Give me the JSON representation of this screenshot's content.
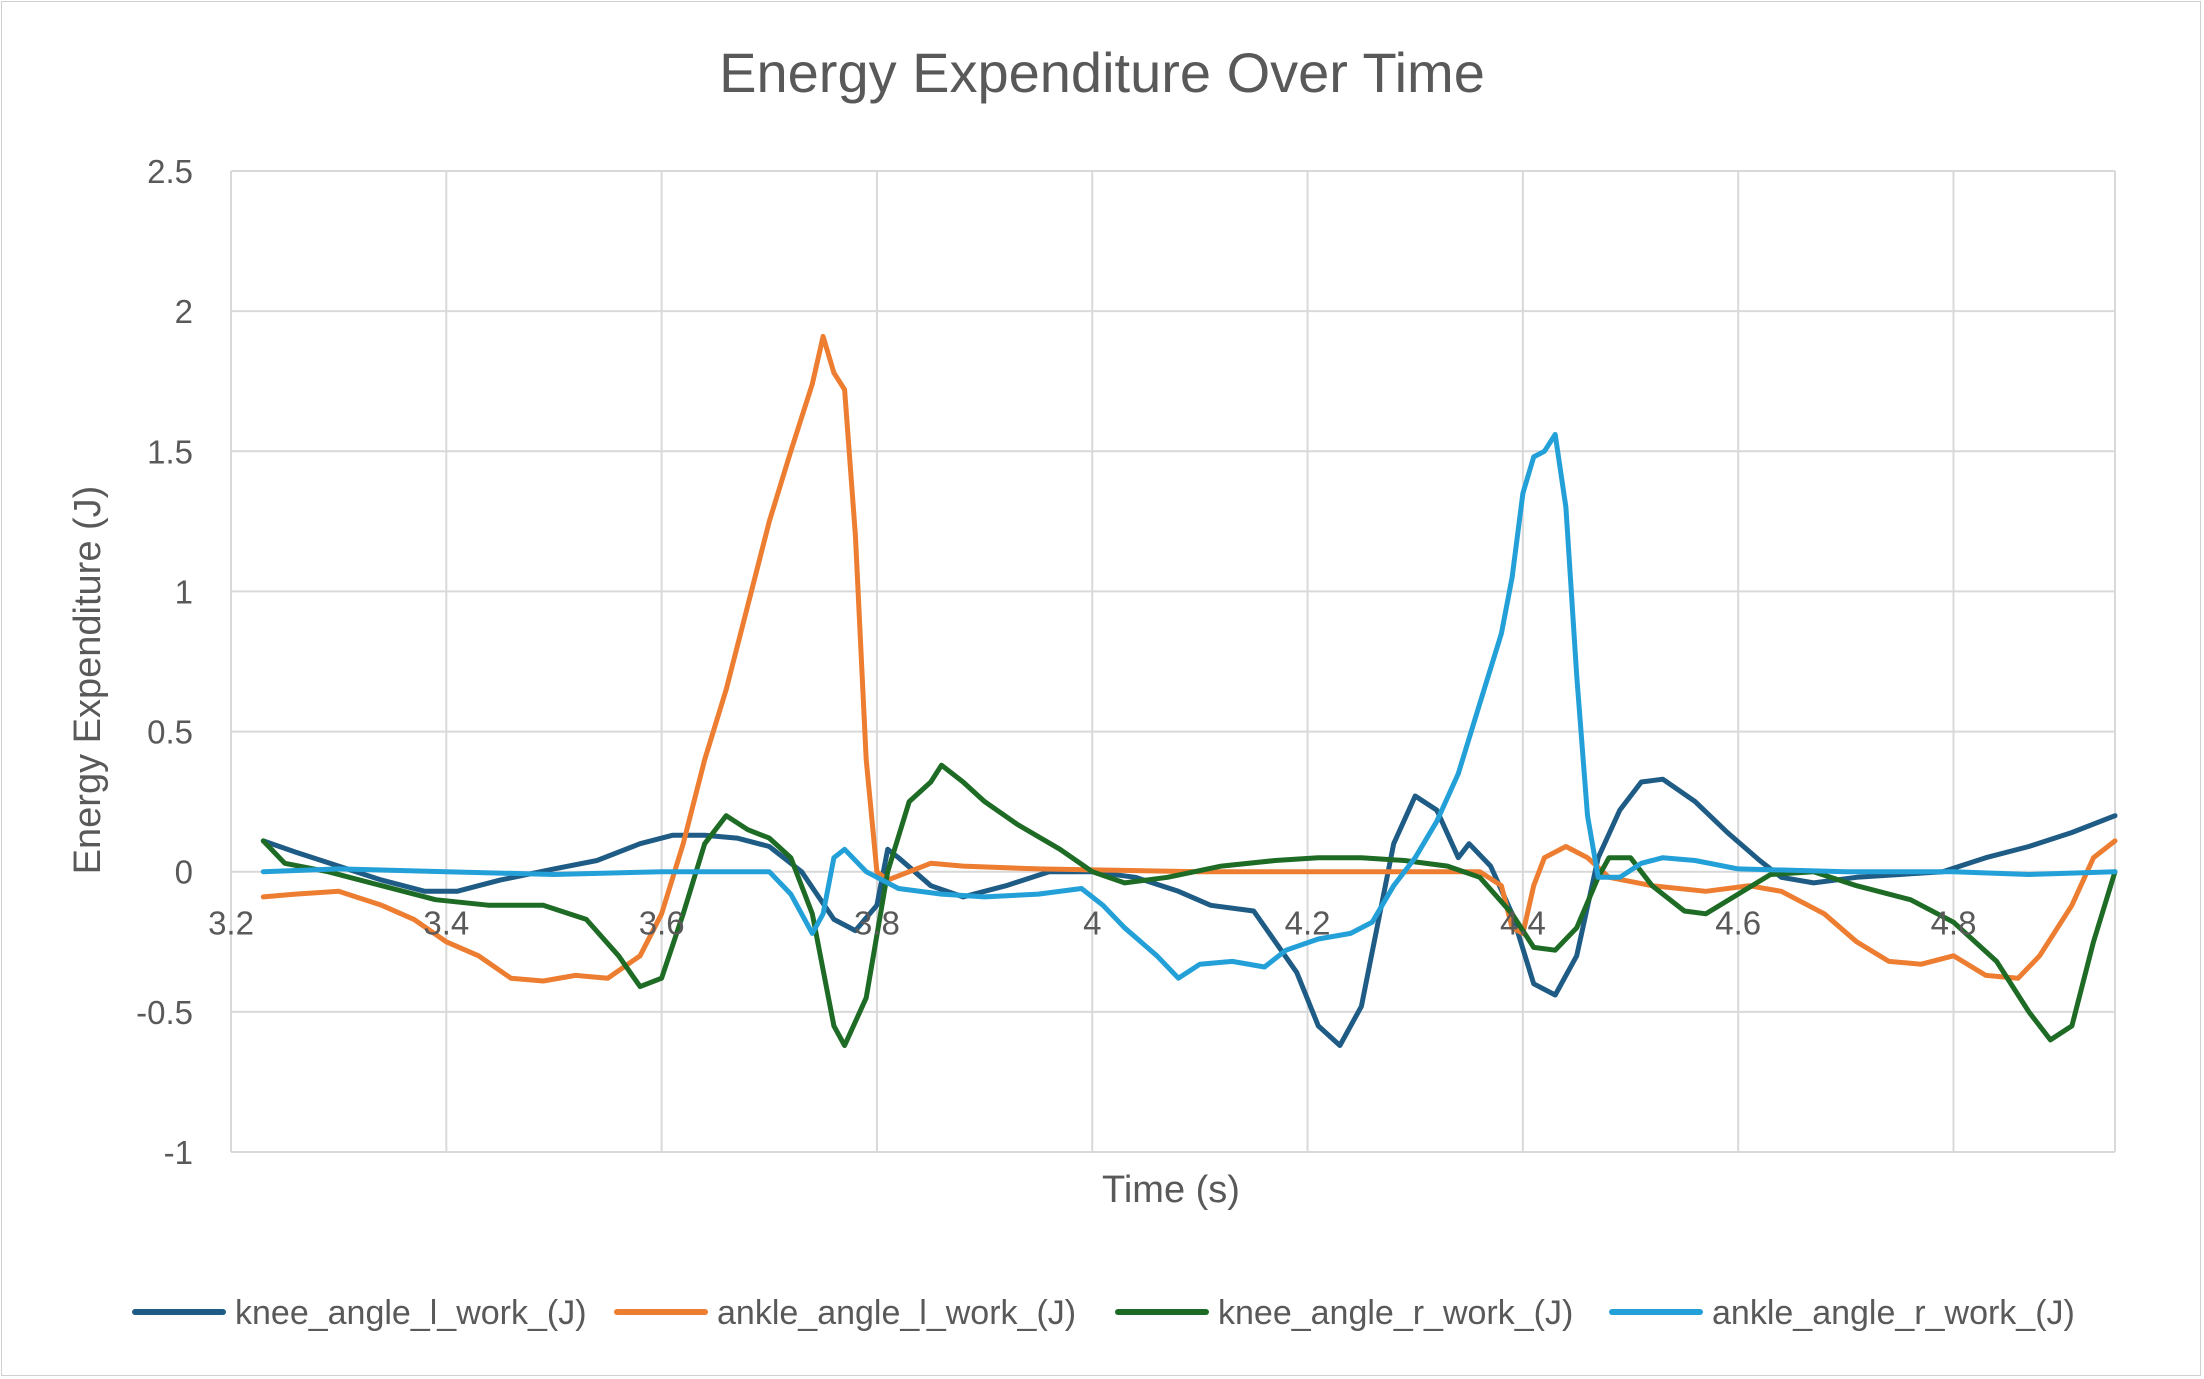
{
  "chart_data": {
    "type": "line",
    "title": "Energy Expenditure Over Time",
    "xlabel": "Time (s)",
    "ylabel": "Energy Expenditure (J)",
    "xlim": [
      3.2,
      4.95
    ],
    "ylim": [
      -1,
      2.5
    ],
    "x_ticks": [
      "3.2",
      "3.4",
      "3.6",
      "3.8",
      "4",
      "4.2",
      "4.4",
      "4.6",
      "4.8"
    ],
    "y_ticks": [
      "2.5",
      "2",
      "1.5",
      "1",
      "0.5",
      "0",
      "-0.5",
      "-1"
    ],
    "grid": "on",
    "legend_position": "bottom",
    "series": [
      {
        "name": "knee_angle_l_work_(J)",
        "color": "#1f5c85",
        "points": [
          [
            3.23,
            0.11
          ],
          [
            3.26,
            0.07
          ],
          [
            3.3,
            0.02
          ],
          [
            3.34,
            -0.03
          ],
          [
            3.38,
            -0.07
          ],
          [
            3.41,
            -0.07
          ],
          [
            3.45,
            -0.03
          ],
          [
            3.5,
            0.01
          ],
          [
            3.54,
            0.04
          ],
          [
            3.58,
            0.1
          ],
          [
            3.61,
            0.13
          ],
          [
            3.64,
            0.13
          ],
          [
            3.67,
            0.12
          ],
          [
            3.7,
            0.09
          ],
          [
            3.73,
            0.0
          ],
          [
            3.76,
            -0.17
          ],
          [
            3.78,
            -0.21
          ],
          [
            3.8,
            -0.12
          ],
          [
            3.81,
            0.08
          ],
          [
            3.82,
            0.05
          ],
          [
            3.85,
            -0.05
          ],
          [
            3.88,
            -0.09
          ],
          [
            3.92,
            -0.05
          ],
          [
            3.96,
            0.0
          ],
          [
            4.0,
            0.0
          ],
          [
            4.04,
            -0.02
          ],
          [
            4.08,
            -0.07
          ],
          [
            4.11,
            -0.12
          ],
          [
            4.15,
            -0.14
          ],
          [
            4.19,
            -0.36
          ],
          [
            4.21,
            -0.55
          ],
          [
            4.23,
            -0.62
          ],
          [
            4.25,
            -0.48
          ],
          [
            4.28,
            0.1
          ],
          [
            4.3,
            0.27
          ],
          [
            4.32,
            0.22
          ],
          [
            4.34,
            0.05
          ],
          [
            4.35,
            0.1
          ],
          [
            4.37,
            0.02
          ],
          [
            4.39,
            -0.15
          ],
          [
            4.41,
            -0.4
          ],
          [
            4.43,
            -0.44
          ],
          [
            4.45,
            -0.3
          ],
          [
            4.47,
            0.05
          ],
          [
            4.49,
            0.22
          ],
          [
            4.51,
            0.32
          ],
          [
            4.53,
            0.33
          ],
          [
            4.56,
            0.25
          ],
          [
            4.59,
            0.14
          ],
          [
            4.62,
            0.04
          ],
          [
            4.64,
            -0.02
          ],
          [
            4.67,
            -0.04
          ],
          [
            4.71,
            -0.02
          ],
          [
            4.75,
            -0.01
          ],
          [
            4.79,
            0.0
          ],
          [
            4.83,
            0.05
          ],
          [
            4.87,
            0.09
          ],
          [
            4.91,
            0.14
          ],
          [
            4.95,
            0.2
          ]
        ]
      },
      {
        "name": "ankle_angle_l_work_(J)",
        "color": "#ed7d31",
        "points": [
          [
            3.23,
            -0.09
          ],
          [
            3.26,
            -0.08
          ],
          [
            3.3,
            -0.07
          ],
          [
            3.34,
            -0.12
          ],
          [
            3.37,
            -0.17
          ],
          [
            3.4,
            -0.25
          ],
          [
            3.43,
            -0.3
          ],
          [
            3.46,
            -0.38
          ],
          [
            3.49,
            -0.39
          ],
          [
            3.52,
            -0.37
          ],
          [
            3.55,
            -0.38
          ],
          [
            3.58,
            -0.3
          ],
          [
            3.6,
            -0.15
          ],
          [
            3.62,
            0.1
          ],
          [
            3.64,
            0.4
          ],
          [
            3.66,
            0.65
          ],
          [
            3.68,
            0.95
          ],
          [
            3.7,
            1.25
          ],
          [
            3.72,
            1.5
          ],
          [
            3.74,
            1.74
          ],
          [
            3.75,
            1.91
          ],
          [
            3.76,
            1.78
          ],
          [
            3.77,
            1.72
          ],
          [
            3.78,
            1.2
          ],
          [
            3.79,
            0.4
          ],
          [
            3.8,
            0.0
          ],
          [
            3.81,
            -0.03
          ],
          [
            3.83,
            0.0
          ],
          [
            3.85,
            0.03
          ],
          [
            3.88,
            0.02
          ],
          [
            3.95,
            0.01
          ],
          [
            4.1,
            0.0
          ],
          [
            4.3,
            0.0
          ],
          [
            4.36,
            0.0
          ],
          [
            4.38,
            -0.05
          ],
          [
            4.39,
            -0.2
          ],
          [
            4.4,
            -0.22
          ],
          [
            4.41,
            -0.05
          ],
          [
            4.42,
            0.05
          ],
          [
            4.44,
            0.09
          ],
          [
            4.46,
            0.05
          ],
          [
            4.48,
            -0.02
          ],
          [
            4.52,
            -0.05
          ],
          [
            4.57,
            -0.07
          ],
          [
            4.61,
            -0.05
          ],
          [
            4.64,
            -0.07
          ],
          [
            4.68,
            -0.15
          ],
          [
            4.71,
            -0.25
          ],
          [
            4.74,
            -0.32
          ],
          [
            4.77,
            -0.33
          ],
          [
            4.8,
            -0.3
          ],
          [
            4.83,
            -0.37
          ],
          [
            4.86,
            -0.38
          ],
          [
            4.88,
            -0.3
          ],
          [
            4.91,
            -0.12
          ],
          [
            4.93,
            0.05
          ],
          [
            4.95,
            0.11
          ]
        ]
      },
      {
        "name": "knee_angle_r_work_(J)",
        "color": "#1e6b25",
        "points": [
          [
            3.23,
            0.11
          ],
          [
            3.25,
            0.03
          ],
          [
            3.29,
            0.0
          ],
          [
            3.34,
            -0.05
          ],
          [
            3.39,
            -0.1
          ],
          [
            3.44,
            -0.12
          ],
          [
            3.49,
            -0.12
          ],
          [
            3.53,
            -0.17
          ],
          [
            3.56,
            -0.3
          ],
          [
            3.58,
            -0.41
          ],
          [
            3.6,
            -0.38
          ],
          [
            3.62,
            -0.15
          ],
          [
            3.64,
            0.1
          ],
          [
            3.66,
            0.2
          ],
          [
            3.68,
            0.15
          ],
          [
            3.7,
            0.12
          ],
          [
            3.72,
            0.05
          ],
          [
            3.74,
            -0.15
          ],
          [
            3.76,
            -0.55
          ],
          [
            3.77,
            -0.62
          ],
          [
            3.79,
            -0.45
          ],
          [
            3.81,
            0.0
          ],
          [
            3.83,
            0.25
          ],
          [
            3.85,
            0.32
          ],
          [
            3.86,
            0.38
          ],
          [
            3.88,
            0.32
          ],
          [
            3.9,
            0.25
          ],
          [
            3.93,
            0.17
          ],
          [
            3.97,
            0.08
          ],
          [
            4.0,
            0.0
          ],
          [
            4.03,
            -0.04
          ],
          [
            4.07,
            -0.02
          ],
          [
            4.12,
            0.02
          ],
          [
            4.17,
            0.04
          ],
          [
            4.21,
            0.05
          ],
          [
            4.25,
            0.05
          ],
          [
            4.29,
            0.04
          ],
          [
            4.33,
            0.02
          ],
          [
            4.36,
            -0.02
          ],
          [
            4.39,
            -0.15
          ],
          [
            4.41,
            -0.27
          ],
          [
            4.43,
            -0.28
          ],
          [
            4.45,
            -0.2
          ],
          [
            4.47,
            -0.02
          ],
          [
            4.48,
            0.05
          ],
          [
            4.5,
            0.05
          ],
          [
            4.52,
            -0.05
          ],
          [
            4.55,
            -0.14
          ],
          [
            4.57,
            -0.15
          ],
          [
            4.6,
            -0.08
          ],
          [
            4.63,
            -0.01
          ],
          [
            4.67,
            0.0
          ],
          [
            4.71,
            -0.05
          ],
          [
            4.76,
            -0.1
          ],
          [
            4.8,
            -0.18
          ],
          [
            4.84,
            -0.32
          ],
          [
            4.87,
            -0.5
          ],
          [
            4.89,
            -0.6
          ],
          [
            4.91,
            -0.55
          ],
          [
            4.93,
            -0.25
          ],
          [
            4.95,
            0.0
          ]
        ]
      },
      {
        "name": "ankle_angle_r_work_(J)",
        "color": "#23a0d8",
        "points": [
          [
            3.23,
            0.0
          ],
          [
            3.3,
            0.01
          ],
          [
            3.4,
            0.0
          ],
          [
            3.5,
            -0.01
          ],
          [
            3.6,
            0.0
          ],
          [
            3.7,
            0.0
          ],
          [
            3.72,
            -0.08
          ],
          [
            3.74,
            -0.22
          ],
          [
            3.75,
            -0.15
          ],
          [
            3.76,
            0.05
          ],
          [
            3.77,
            0.08
          ],
          [
            3.79,
            0.0
          ],
          [
            3.82,
            -0.06
          ],
          [
            3.86,
            -0.08
          ],
          [
            3.9,
            -0.09
          ],
          [
            3.95,
            -0.08
          ],
          [
            3.99,
            -0.06
          ],
          [
            4.01,
            -0.12
          ],
          [
            4.03,
            -0.2
          ],
          [
            4.06,
            -0.3
          ],
          [
            4.08,
            -0.38
          ],
          [
            4.1,
            -0.33
          ],
          [
            4.13,
            -0.32
          ],
          [
            4.16,
            -0.34
          ],
          [
            4.18,
            -0.28
          ],
          [
            4.21,
            -0.24
          ],
          [
            4.24,
            -0.22
          ],
          [
            4.26,
            -0.18
          ],
          [
            4.28,
            -0.05
          ],
          [
            4.3,
            0.05
          ],
          [
            4.32,
            0.18
          ],
          [
            4.34,
            0.35
          ],
          [
            4.36,
            0.6
          ],
          [
            4.38,
            0.85
          ],
          [
            4.39,
            1.05
          ],
          [
            4.4,
            1.35
          ],
          [
            4.41,
            1.48
          ],
          [
            4.42,
            1.5
          ],
          [
            4.43,
            1.56
          ],
          [
            4.44,
            1.3
          ],
          [
            4.45,
            0.7
          ],
          [
            4.46,
            0.2
          ],
          [
            4.47,
            -0.02
          ],
          [
            4.49,
            -0.02
          ],
          [
            4.51,
            0.03
          ],
          [
            4.53,
            0.05
          ],
          [
            4.56,
            0.04
          ],
          [
            4.6,
            0.01
          ],
          [
            4.7,
            0.0
          ],
          [
            4.8,
            0.0
          ],
          [
            4.87,
            -0.01
          ],
          [
            4.95,
            0.0
          ]
        ]
      }
    ]
  }
}
